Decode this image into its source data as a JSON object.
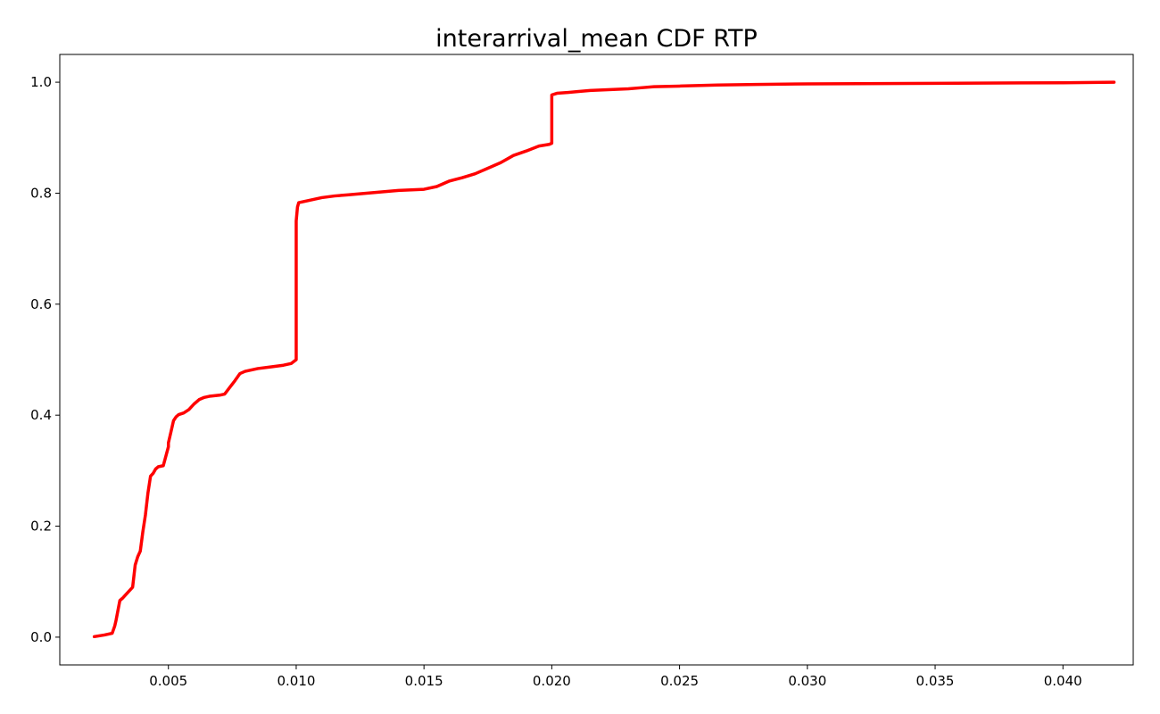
{
  "chart_data": {
    "type": "line",
    "title": "interarrival_mean CDF RTP",
    "xlabel": "",
    "ylabel": "",
    "xlim": [
      0.00075,
      0.04275
    ],
    "ylim": [
      -0.05,
      1.05
    ],
    "x_ticks": [
      0.005,
      0.01,
      0.015,
      0.02,
      0.025,
      0.03,
      0.035,
      0.04
    ],
    "x_tick_labels": [
      "0.005",
      "0.010",
      "0.015",
      "0.020",
      "0.025",
      "0.030",
      "0.035",
      "0.040"
    ],
    "y_ticks": [
      0.0,
      0.2,
      0.4,
      0.6,
      0.8,
      1.0
    ],
    "y_tick_labels": [
      "0.0",
      "0.2",
      "0.4",
      "0.6",
      "0.8",
      "1.0"
    ],
    "grid": false,
    "legend": "none",
    "series": [
      {
        "color": "#ff0000",
        "x": [
          0.0021,
          0.0025,
          0.0028,
          0.0029,
          0.00295,
          0.0031,
          0.0032,
          0.0034,
          0.0036,
          0.0037,
          0.0038,
          0.0039,
          0.004,
          0.0041,
          0.0042,
          0.0043,
          0.0044,
          0.0045,
          0.0046,
          0.0047,
          0.0048,
          0.005,
          0.005,
          0.0051,
          0.0052,
          0.0053,
          0.0054,
          0.0056,
          0.0058,
          0.006,
          0.0062,
          0.0064,
          0.0066,
          0.0068,
          0.007,
          0.0072,
          0.0074,
          0.0076,
          0.0078,
          0.008,
          0.0085,
          0.009,
          0.0095,
          0.0098,
          0.01,
          0.01,
          0.01005,
          0.0101,
          0.0103,
          0.0105,
          0.0107,
          0.011,
          0.0115,
          0.012,
          0.0125,
          0.013,
          0.0135,
          0.014,
          0.0145,
          0.015,
          0.0155,
          0.016,
          0.0165,
          0.017,
          0.0175,
          0.018,
          0.0185,
          0.019,
          0.0195,
          0.0199,
          0.02,
          0.02,
          0.0202,
          0.0205,
          0.021,
          0.0215,
          0.022,
          0.0225,
          0.023,
          0.0235,
          0.024,
          0.025,
          0.0265,
          0.028,
          0.03,
          0.035,
          0.04,
          0.042
        ],
        "y": [
          0.001,
          0.004,
          0.007,
          0.02,
          0.03,
          0.066,
          0.07,
          0.08,
          0.09,
          0.13,
          0.145,
          0.155,
          0.19,
          0.22,
          0.26,
          0.29,
          0.295,
          0.303,
          0.307,
          0.308,
          0.309,
          0.343,
          0.35,
          0.37,
          0.39,
          0.397,
          0.401,
          0.404,
          0.41,
          0.42,
          0.428,
          0.432,
          0.434,
          0.435,
          0.436,
          0.438,
          0.45,
          0.462,
          0.475,
          0.479,
          0.484,
          0.487,
          0.49,
          0.493,
          0.5,
          0.75,
          0.775,
          0.783,
          0.785,
          0.787,
          0.789,
          0.792,
          0.795,
          0.797,
          0.799,
          0.801,
          0.803,
          0.805,
          0.806,
          0.807,
          0.812,
          0.822,
          0.828,
          0.835,
          0.845,
          0.855,
          0.868,
          0.876,
          0.885,
          0.888,
          0.89,
          0.977,
          0.98,
          0.981,
          0.983,
          0.985,
          0.986,
          0.987,
          0.988,
          0.99,
          0.992,
          0.993,
          0.995,
          0.996,
          0.997,
          0.998,
          0.999,
          1.0
        ]
      }
    ]
  }
}
